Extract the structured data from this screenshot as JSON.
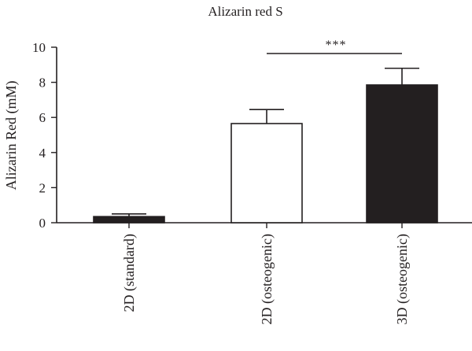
{
  "chart_data": {
    "type": "bar",
    "title": "Alizarin red S",
    "xlabel": "",
    "ylabel": "Alizarin Red (mM)",
    "ylim": [
      0,
      10
    ],
    "yticks": [
      "0",
      "2",
      "4",
      "6",
      "8",
      "10"
    ],
    "categories": [
      "2D (standard)",
      "2D (osteogenic)",
      "3D (osteogenic)"
    ],
    "values": [
      0.35,
      5.65,
      7.85
    ],
    "errors": [
      0.15,
      0.8,
      0.95
    ],
    "bar_colors": [
      "#231f20",
      "#ffffff",
      "#231f20"
    ],
    "significance": {
      "label": "***",
      "from_category": 1,
      "to_category": 2
    }
  }
}
